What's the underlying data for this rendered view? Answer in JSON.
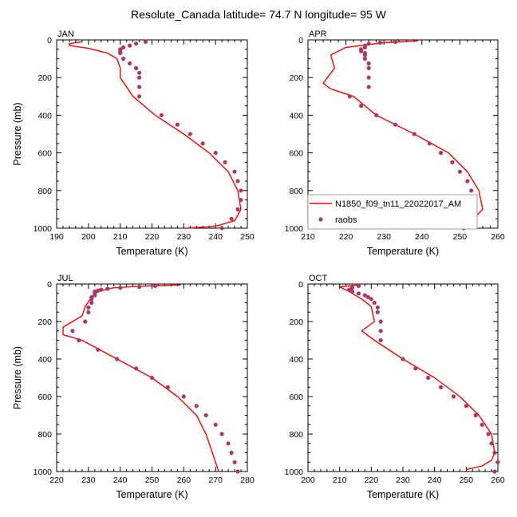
{
  "figure": {
    "title": "Resolute_Canada  latitude= 74.7 N longitude= 95 W"
  },
  "colors": {
    "model": "#ff0000",
    "obs": "#a93a64",
    "axis": "#000000"
  },
  "legend": {
    "model_label": "N1850_f09_tn11_22022017_AM",
    "obs_label": "raobs",
    "panel": "APR"
  },
  "chart_data": [
    {
      "type": "scatter",
      "panel": "JAN",
      "title": "JAN",
      "xlabel": "Temperature (K)",
      "ylabel": "Pressure (mb)",
      "xlim": [
        190,
        250
      ],
      "ylim": [
        0,
        1000
      ],
      "y_inverted": true,
      "xticks": [
        190,
        200,
        210,
        220,
        230,
        240,
        250
      ],
      "yticks": [
        0,
        200,
        400,
        600,
        800,
        1000
      ],
      "series": [
        {
          "name": "model",
          "kind": "line",
          "points": [
            [
              198,
              10
            ],
            [
              194,
              20
            ],
            [
              194,
              30
            ],
            [
              200,
              45
            ],
            [
              206,
              70
            ],
            [
              209,
              100
            ],
            [
              210,
              150
            ],
            [
              210,
              200
            ],
            [
              214,
              300
            ],
            [
              221,
              400
            ],
            [
              230,
              500
            ],
            [
              238,
              600
            ],
            [
              244,
              700
            ],
            [
              247,
              800
            ],
            [
              248,
              900
            ],
            [
              246,
              960
            ],
            [
              240,
              990
            ],
            [
              231,
              1000
            ]
          ]
        },
        {
          "name": "raobs",
          "kind": "markers",
          "points": [
            [
              218,
              10
            ],
            [
              215,
              20
            ],
            [
              213,
              30
            ],
            [
              211,
              40
            ],
            [
              210,
              50
            ],
            [
              210,
              60
            ],
            [
              210,
              70
            ],
            [
              211,
              100
            ],
            [
              213,
              125
            ],
            [
              215,
              150
            ],
            [
              216,
              175
            ],
            [
              216,
              200
            ],
            [
              216,
              250
            ],
            [
              216,
              300
            ],
            [
              223,
              400
            ],
            [
              228,
              450
            ],
            [
              232,
              500
            ],
            [
              236,
              550
            ],
            [
              240,
              600
            ],
            [
              243,
              650
            ],
            [
              246,
              700
            ],
            [
              247,
              750
            ],
            [
              248,
              800
            ],
            [
              248,
              850
            ],
            [
              247,
              900
            ],
            [
              245,
              950
            ],
            [
              242,
              1000
            ]
          ]
        }
      ]
    },
    {
      "type": "scatter",
      "panel": "APR",
      "title": "APR",
      "xlabel": "Temperature (K)",
      "ylabel": "",
      "xlim": [
        210,
        260
      ],
      "ylim": [
        0,
        1000
      ],
      "y_inverted": true,
      "xticks": [
        210,
        220,
        230,
        240,
        250,
        260
      ],
      "yticks": [
        0,
        200,
        400,
        600,
        800,
        1000
      ],
      "series": [
        {
          "name": "model",
          "kind": "line",
          "points": [
            [
              239,
              5
            ],
            [
              230,
              15
            ],
            [
              220,
              40
            ],
            [
              216,
              80
            ],
            [
              217,
              150
            ],
            [
              214,
              230
            ],
            [
              216,
              260
            ],
            [
              222,
              300
            ],
            [
              228,
              400
            ],
            [
              238,
              500
            ],
            [
              247,
              600
            ],
            [
              252,
              700
            ],
            [
              255,
              800
            ],
            [
              256,
              900
            ],
            [
              253,
              960
            ],
            [
              248,
              990
            ]
          ]
        },
        {
          "name": "raobs",
          "kind": "markers",
          "points": [
            [
              233,
              10
            ],
            [
              229,
              15
            ],
            [
              226,
              20
            ],
            [
              225,
              30
            ],
            [
              225,
              40
            ],
            [
              224,
              50
            ],
            [
              224,
              60
            ],
            [
              225,
              70
            ],
            [
              225,
              80
            ],
            [
              225,
              100
            ],
            [
              226,
              125
            ],
            [
              226,
              150
            ],
            [
              226,
              200
            ],
            [
              226,
              250
            ],
            [
              221,
              300
            ],
            [
              224,
              350
            ],
            [
              228,
              400
            ],
            [
              233,
              450
            ],
            [
              238,
              500
            ],
            [
              242,
              550
            ],
            [
              245,
              600
            ],
            [
              248,
              650
            ],
            [
              250,
              700
            ],
            [
              252,
              750
            ],
            [
              253,
              800
            ],
            [
              254,
              850
            ],
            [
              254,
              900
            ],
            [
              253,
              950
            ],
            [
              251,
              1000
            ]
          ]
        }
      ]
    },
    {
      "type": "scatter",
      "panel": "JUL",
      "title": "JUL",
      "xlabel": "Temperature (K)",
      "ylabel": "Pressure (mb)",
      "xlim": [
        220,
        280
      ],
      "ylim": [
        0,
        1000
      ],
      "y_inverted": true,
      "xticks": [
        220,
        230,
        240,
        250,
        260,
        270,
        280
      ],
      "yticks": [
        0,
        200,
        400,
        600,
        800,
        1000
      ],
      "series": [
        {
          "name": "model",
          "kind": "line",
          "points": [
            [
              259,
              5
            ],
            [
              248,
              10
            ],
            [
              238,
              20
            ],
            [
              233,
              40
            ],
            [
              231,
              70
            ],
            [
              229,
              120
            ],
            [
              228,
              170
            ],
            [
              225,
              200
            ],
            [
              222,
              230
            ],
            [
              222,
              270
            ],
            [
              228,
              300
            ],
            [
              239,
              400
            ],
            [
              250,
              500
            ],
            [
              258,
              600
            ],
            [
              264,
              700
            ],
            [
              267,
              800
            ],
            [
              269,
              900
            ],
            [
              271,
              1000
            ]
          ]
        },
        {
          "name": "raobs",
          "kind": "markers",
          "points": [
            [
              251,
              10
            ],
            [
              246,
              15
            ],
            [
              240,
              20
            ],
            [
              236,
              25
            ],
            [
              234,
              30
            ],
            [
              233,
              35
            ],
            [
              232,
              40
            ],
            [
              232,
              50
            ],
            [
              232,
              60
            ],
            [
              231,
              70
            ],
            [
              231,
              80
            ],
            [
              231,
              100
            ],
            [
              230,
              125
            ],
            [
              230,
              150
            ],
            [
              229,
              200
            ],
            [
              225,
              250
            ],
            [
              227,
              300
            ],
            [
              233,
              350
            ],
            [
              239,
              400
            ],
            [
              245,
              450
            ],
            [
              250,
              500
            ],
            [
              255,
              550
            ],
            [
              260,
              600
            ],
            [
              264,
              650
            ],
            [
              267,
              700
            ],
            [
              270,
              750
            ],
            [
              272,
              800
            ],
            [
              274,
              850
            ],
            [
              275,
              900
            ],
            [
              276,
              950
            ],
            [
              277,
              1000
            ]
          ]
        }
      ]
    },
    {
      "type": "scatter",
      "panel": "OCT",
      "title": "OCT",
      "xlabel": "Temperature (K)",
      "ylabel": "",
      "xlim": [
        200,
        260
      ],
      "ylim": [
        0,
        1000
      ],
      "y_inverted": true,
      "xticks": [
        200,
        210,
        220,
        230,
        240,
        250,
        260
      ],
      "yticks": [
        0,
        200,
        400,
        600,
        800,
        1000
      ],
      "series": [
        {
          "name": "model",
          "kind": "line",
          "points": [
            [
              216,
              5
            ],
            [
              210,
              15
            ],
            [
              213,
              40
            ],
            [
              217,
              80
            ],
            [
              220,
              120
            ],
            [
              221,
              200
            ],
            [
              217,
              250
            ],
            [
              221,
              300
            ],
            [
              230,
              400
            ],
            [
              240,
              500
            ],
            [
              248,
              600
            ],
            [
              254,
              700
            ],
            [
              258,
              800
            ],
            [
              259,
              900
            ],
            [
              258,
              940
            ],
            [
              255,
              970
            ],
            [
              250,
              990
            ]
          ]
        },
        {
          "name": "raobs",
          "kind": "markers",
          "points": [
            [
              216,
              10
            ],
            [
              214,
              20
            ],
            [
              213,
              30
            ],
            [
              214,
              40
            ],
            [
              216,
              50
            ],
            [
              218,
              60
            ],
            [
              219,
              70
            ],
            [
              220,
              80
            ],
            [
              221,
              100
            ],
            [
              222,
              125
            ],
            [
              222,
              150
            ],
            [
              223,
              200
            ],
            [
              223,
              250
            ],
            [
              223,
              300
            ],
            [
              230,
              400
            ],
            [
              234,
              450
            ],
            [
              238,
              500
            ],
            [
              242,
              550
            ],
            [
              246,
              600
            ],
            [
              250,
              650
            ],
            [
              253,
              700
            ],
            [
              255,
              750
            ],
            [
              257,
              800
            ],
            [
              258,
              850
            ],
            [
              259,
              900
            ],
            [
              260,
              950
            ],
            [
              259,
              1000
            ]
          ]
        }
      ]
    }
  ]
}
